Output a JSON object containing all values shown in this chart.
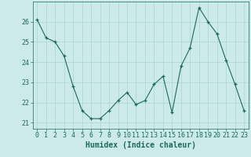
{
  "x": [
    0,
    1,
    2,
    3,
    4,
    5,
    6,
    7,
    8,
    9,
    10,
    11,
    12,
    13,
    14,
    15,
    16,
    17,
    18,
    19,
    20,
    21,
    22,
    23
  ],
  "y": [
    26.1,
    25.2,
    25.0,
    24.3,
    22.8,
    21.6,
    21.2,
    21.2,
    21.6,
    22.1,
    22.5,
    21.9,
    22.1,
    22.9,
    23.3,
    21.5,
    23.8,
    24.7,
    26.7,
    26.0,
    25.4,
    24.1,
    22.9,
    21.6
  ],
  "line_color": "#1a6b5a",
  "marker": "+",
  "bg_color": "#cceaea",
  "grid_color": "#aad4d4",
  "xlabel": "Humidex (Indice chaleur)",
  "ylim": [
    20.7,
    27.0
  ],
  "xlim": [
    -0.5,
    23.5
  ],
  "yticks": [
    21,
    22,
    23,
    24,
    25,
    26
  ],
  "xticks": [
    0,
    1,
    2,
    3,
    4,
    5,
    6,
    7,
    8,
    9,
    10,
    11,
    12,
    13,
    14,
    15,
    16,
    17,
    18,
    19,
    20,
    21,
    22,
    23
  ],
  "tick_color": "#1a6b5a",
  "label_color": "#1a6b5a",
  "xlabel_fontsize": 7,
  "tick_fontsize": 6
}
